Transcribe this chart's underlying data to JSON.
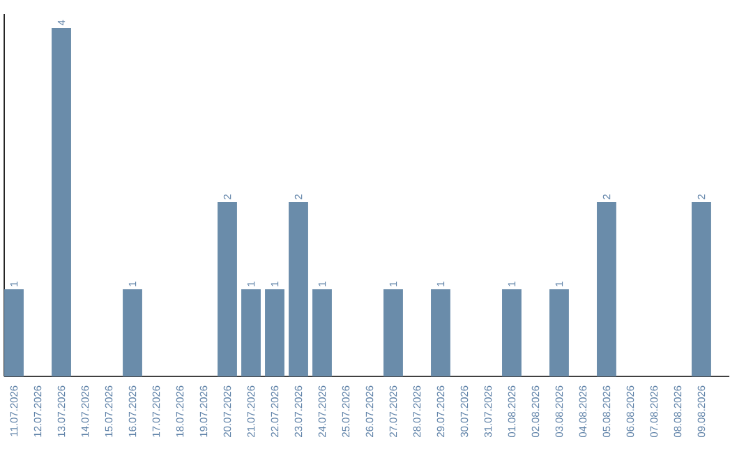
{
  "chart_data": {
    "type": "bar",
    "categories": [
      "11.07.2026",
      "12.07.2026",
      "13.07.2026",
      "14.07.2026",
      "15.07.2026",
      "16.07.2026",
      "17.07.2026",
      "18.07.2026",
      "19.07.2026",
      "20.07.2026",
      "21.07.2026",
      "22.07.2026",
      "23.07.2026",
      "24.07.2026",
      "25.07.2026",
      "26.07.2026",
      "27.07.2026",
      "28.07.2026",
      "29.07.2026",
      "30.07.2026",
      "31.07.2026",
      "01.08.2026",
      "02.08.2026",
      "03.08.2026",
      "04.08.2026",
      "05.08.2026",
      "06.08.2026",
      "07.08.2026",
      "08.08.2026",
      "09.08.2026"
    ],
    "values": [
      1,
      0,
      4,
      0,
      0,
      1,
      0,
      0,
      0,
      2,
      1,
      1,
      2,
      1,
      0,
      0,
      1,
      0,
      1,
      0,
      0,
      1,
      0,
      1,
      0,
      2,
      0,
      0,
      0,
      2
    ],
    "value_labels": [
      "1",
      null,
      "4",
      null,
      null,
      "1",
      null,
      null,
      null,
      "2",
      "1",
      "1",
      "2",
      "1",
      null,
      null,
      "1",
      null,
      "1",
      null,
      null,
      "1",
      null,
      "1",
      null,
      "2",
      null,
      null,
      null,
      "2"
    ],
    "color": "#6a8caa",
    "tick_labels": "x"
  }
}
